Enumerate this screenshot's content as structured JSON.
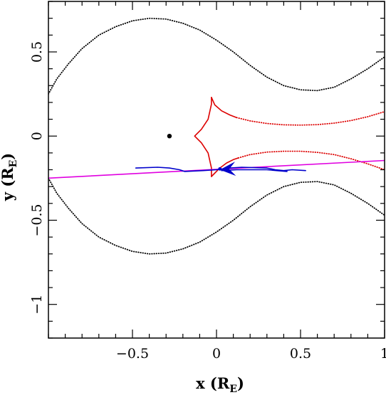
{
  "chart_data": {
    "type": "line",
    "xlim": [
      -1.0,
      1.0
    ],
    "ylim": [
      -1.2,
      0.8
    ],
    "x_ticks": [
      -0.5,
      0,
      0.5,
      1
    ],
    "x_tick_labels": [
      "−0.5",
      "0",
      "0.5",
      "1"
    ],
    "y_ticks": [
      -1,
      -0.5,
      0,
      0.5
    ],
    "y_tick_labels": [
      "−1",
      "−0.5",
      "0",
      "0.5"
    ],
    "xlabel_main": "x (R",
    "xlabel_sub": "E",
    "xlabel_close": ")",
    "ylabel_main": "y (R",
    "ylabel_sub": "E",
    "ylabel_close": ")",
    "grid": false,
    "colors": {
      "critical_curve": "#000000",
      "caustic": "#dd0000",
      "trajectory": "#e000e0",
      "images": "#0000cc",
      "lens_point": "#000000"
    },
    "series": [
      {
        "color_key": "critical_curve",
        "style": "dotted",
        "points": [
          [
            -1.0,
            0.25
          ],
          [
            -0.95,
            0.34
          ],
          [
            -0.88,
            0.43
          ],
          [
            -0.8,
            0.52
          ],
          [
            -0.7,
            0.6
          ],
          [
            -0.6,
            0.65
          ],
          [
            -0.5,
            0.685
          ],
          [
            -0.4,
            0.7
          ],
          [
            -0.3,
            0.695
          ],
          [
            -0.2,
            0.67
          ],
          [
            -0.1,
            0.63
          ],
          [
            0.0,
            0.57
          ],
          [
            0.1,
            0.5
          ],
          [
            0.2,
            0.42
          ],
          [
            0.3,
            0.35
          ],
          [
            0.4,
            0.3
          ],
          [
            0.5,
            0.275
          ],
          [
            0.6,
            0.27
          ],
          [
            0.7,
            0.29
          ],
          [
            0.8,
            0.34
          ],
          [
            0.9,
            0.4
          ],
          [
            1.0,
            0.47
          ]
        ]
      },
      {
        "color_key": "critical_curve",
        "style": "dotted",
        "points": [
          [
            -1.0,
            -0.25
          ],
          [
            -0.95,
            -0.34
          ],
          [
            -0.88,
            -0.43
          ],
          [
            -0.8,
            -0.52
          ],
          [
            -0.7,
            -0.6
          ],
          [
            -0.6,
            -0.65
          ],
          [
            -0.5,
            -0.685
          ],
          [
            -0.4,
            -0.7
          ],
          [
            -0.3,
            -0.695
          ],
          [
            -0.2,
            -0.67
          ],
          [
            -0.1,
            -0.63
          ],
          [
            0.0,
            -0.57
          ],
          [
            0.1,
            -0.5
          ],
          [
            0.2,
            -0.42
          ],
          [
            0.3,
            -0.35
          ],
          [
            0.4,
            -0.3
          ],
          [
            0.5,
            -0.275
          ],
          [
            0.6,
            -0.27
          ],
          [
            0.7,
            -0.29
          ],
          [
            0.8,
            -0.34
          ],
          [
            0.9,
            -0.4
          ],
          [
            1.0,
            -0.47
          ]
        ]
      },
      {
        "color_key": "caustic",
        "style": "solid",
        "points": [
          [
            -0.03,
            0.23
          ],
          [
            -0.03,
            0.19
          ],
          [
            -0.05,
            0.1
          ],
          [
            -0.09,
            0.04
          ],
          [
            -0.13,
            0.0
          ],
          [
            -0.09,
            -0.04
          ],
          [
            -0.05,
            -0.1
          ],
          [
            -0.03,
            -0.19
          ],
          [
            -0.03,
            -0.24
          ]
        ]
      },
      {
        "color_key": "caustic",
        "style": "solid",
        "points": [
          [
            -0.03,
            0.23
          ],
          [
            -0.01,
            0.185
          ],
          [
            0.03,
            0.15
          ],
          [
            0.08,
            0.125
          ],
          [
            0.12,
            0.11
          ]
        ]
      },
      {
        "color_key": "caustic",
        "style": "solid",
        "points": [
          [
            -0.03,
            -0.24
          ],
          [
            0.02,
            -0.19
          ],
          [
            0.06,
            -0.16
          ],
          [
            0.1,
            -0.14
          ],
          [
            0.13,
            -0.13
          ]
        ]
      },
      {
        "color_key": "caustic",
        "style": "dotted",
        "points": [
          [
            0.12,
            0.11
          ],
          [
            0.2,
            0.09
          ],
          [
            0.3,
            0.075
          ],
          [
            0.4,
            0.067
          ],
          [
            0.5,
            0.065
          ],
          [
            0.6,
            0.068
          ],
          [
            0.7,
            0.077
          ],
          [
            0.8,
            0.092
          ],
          [
            0.9,
            0.115
          ],
          [
            1.0,
            0.145
          ]
        ]
      },
      {
        "color_key": "caustic",
        "style": "dotted",
        "points": [
          [
            0.13,
            -0.13
          ],
          [
            0.2,
            -0.11
          ],
          [
            0.3,
            -0.095
          ],
          [
            0.4,
            -0.09
          ],
          [
            0.5,
            -0.09
          ],
          [
            0.6,
            -0.097
          ],
          [
            0.7,
            -0.11
          ],
          [
            0.8,
            -0.135
          ],
          [
            0.9,
            -0.165
          ],
          [
            1.0,
            -0.2
          ]
        ]
      },
      {
        "color_key": "trajectory",
        "style": "solid",
        "points": [
          [
            -1.0,
            -0.25
          ],
          [
            1.0,
            -0.145
          ]
        ]
      },
      {
        "color_key": "images",
        "style": "solid",
        "points": [
          [
            -0.48,
            -0.19
          ],
          [
            -0.35,
            -0.185
          ],
          [
            -0.28,
            -0.19
          ],
          [
            -0.22,
            -0.2
          ],
          [
            -0.19,
            -0.21
          ],
          [
            -0.08,
            -0.205
          ],
          [
            0.0,
            -0.2
          ],
          [
            0.08,
            -0.19
          ],
          [
            0.15,
            -0.185
          ],
          [
            0.3,
            -0.19
          ],
          [
            0.35,
            -0.2
          ],
          [
            0.4,
            -0.205
          ],
          [
            0.45,
            -0.2
          ],
          [
            0.53,
            -0.205
          ]
        ]
      },
      {
        "color_key": "images",
        "style": "solid",
        "points": [
          [
            0.03,
            -0.205
          ],
          [
            0.12,
            -0.2
          ],
          [
            0.3,
            -0.2
          ],
          [
            0.42,
            -0.21
          ]
        ]
      }
    ],
    "arrow": {
      "color_key": "images",
      "tip": [
        0.02,
        -0.2
      ],
      "back": [
        0.1,
        -0.195
      ]
    },
    "points": [
      {
        "x": -0.28,
        "y": 0.0,
        "color_key": "lens_point"
      },
      {
        "x": 0.02,
        "y": -0.195,
        "color_key": "images"
      }
    ]
  }
}
